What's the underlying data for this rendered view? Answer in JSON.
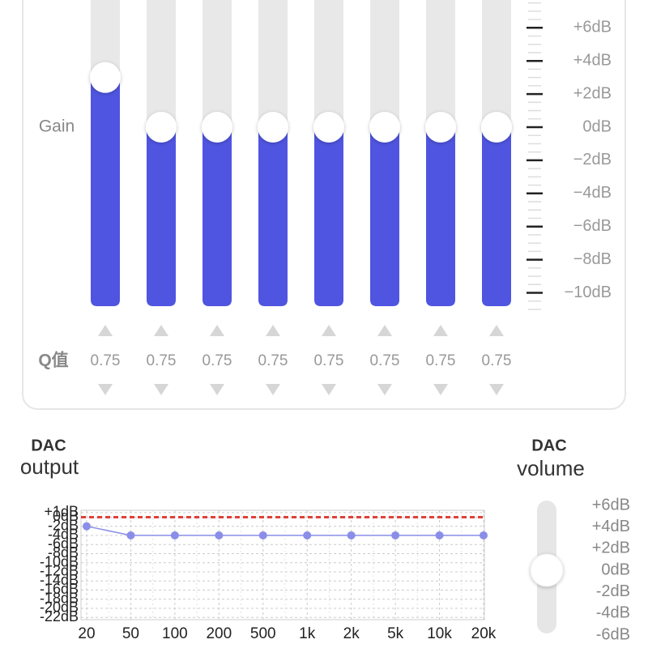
{
  "gain_panel": {
    "label": "Gain",
    "scale": [
      {
        "value": 6,
        "label": "+6dB"
      },
      {
        "value": 4,
        "label": "+4dB"
      },
      {
        "value": 2,
        "label": "+2dB"
      },
      {
        "value": 0,
        "label": "0dB"
      },
      {
        "value": -2,
        "label": "−2dB"
      },
      {
        "value": -4,
        "label": "−4dB"
      },
      {
        "value": -6,
        "label": "−6dB"
      },
      {
        "value": -8,
        "label": "−8dB"
      },
      {
        "value": -10,
        "label": "−10dB"
      }
    ],
    "bands": [
      3,
      0,
      0,
      0,
      0,
      0,
      0,
      0
    ],
    "color": "#4f55e0",
    "q_label": "Q值",
    "q_values": [
      0.75,
      0.75,
      0.75,
      0.75,
      0.75,
      0.75,
      0.75,
      0.75
    ]
  },
  "dac_output": {
    "title_line1": "DAC",
    "title_line2": "output",
    "type": "line",
    "categories": [
      "20",
      "50",
      "100",
      "200",
      "500",
      "1k",
      "2k",
      "5k",
      "10k",
      "20k"
    ],
    "values": [
      -2,
      -4,
      -4,
      -4,
      -4,
      -4,
      -4,
      -4,
      -4,
      -4
    ],
    "color": "#8a8ee8",
    "reference": 0,
    "reference_color": "#e0403a",
    "ylim": [
      -22.5,
      1.5
    ],
    "yticks": [
      {
        "value": 1,
        "label": "+1dB"
      },
      {
        "value": 0,
        "label": "0dB"
      },
      {
        "value": -2,
        "label": "-2dB"
      },
      {
        "value": -4,
        "label": "-4dB"
      },
      {
        "value": -6,
        "label": "-6dB"
      },
      {
        "value": -8,
        "label": "-8dB"
      },
      {
        "value": -10,
        "label": "-10dB"
      },
      {
        "value": -12,
        "label": "-12dB"
      },
      {
        "value": -14,
        "label": "-14dB"
      },
      {
        "value": -16,
        "label": "-16dB"
      },
      {
        "value": -18,
        "label": "-18dB"
      },
      {
        "value": -20,
        "label": "-20dB"
      },
      {
        "value": -22,
        "label": "-22dB"
      }
    ]
  },
  "dac_volume": {
    "title_line1": "DAC",
    "title_line2": "volume",
    "scale": [
      {
        "value": 6,
        "label": "+6dB"
      },
      {
        "value": 4,
        "label": "+4dB"
      },
      {
        "value": 2,
        "label": "+2dB"
      },
      {
        "value": 0,
        "label": "0dB"
      },
      {
        "value": -2,
        "label": "-2dB"
      },
      {
        "value": -4,
        "label": "-4dB"
      },
      {
        "value": -6,
        "label": "-6dB"
      }
    ],
    "value": 0
  }
}
